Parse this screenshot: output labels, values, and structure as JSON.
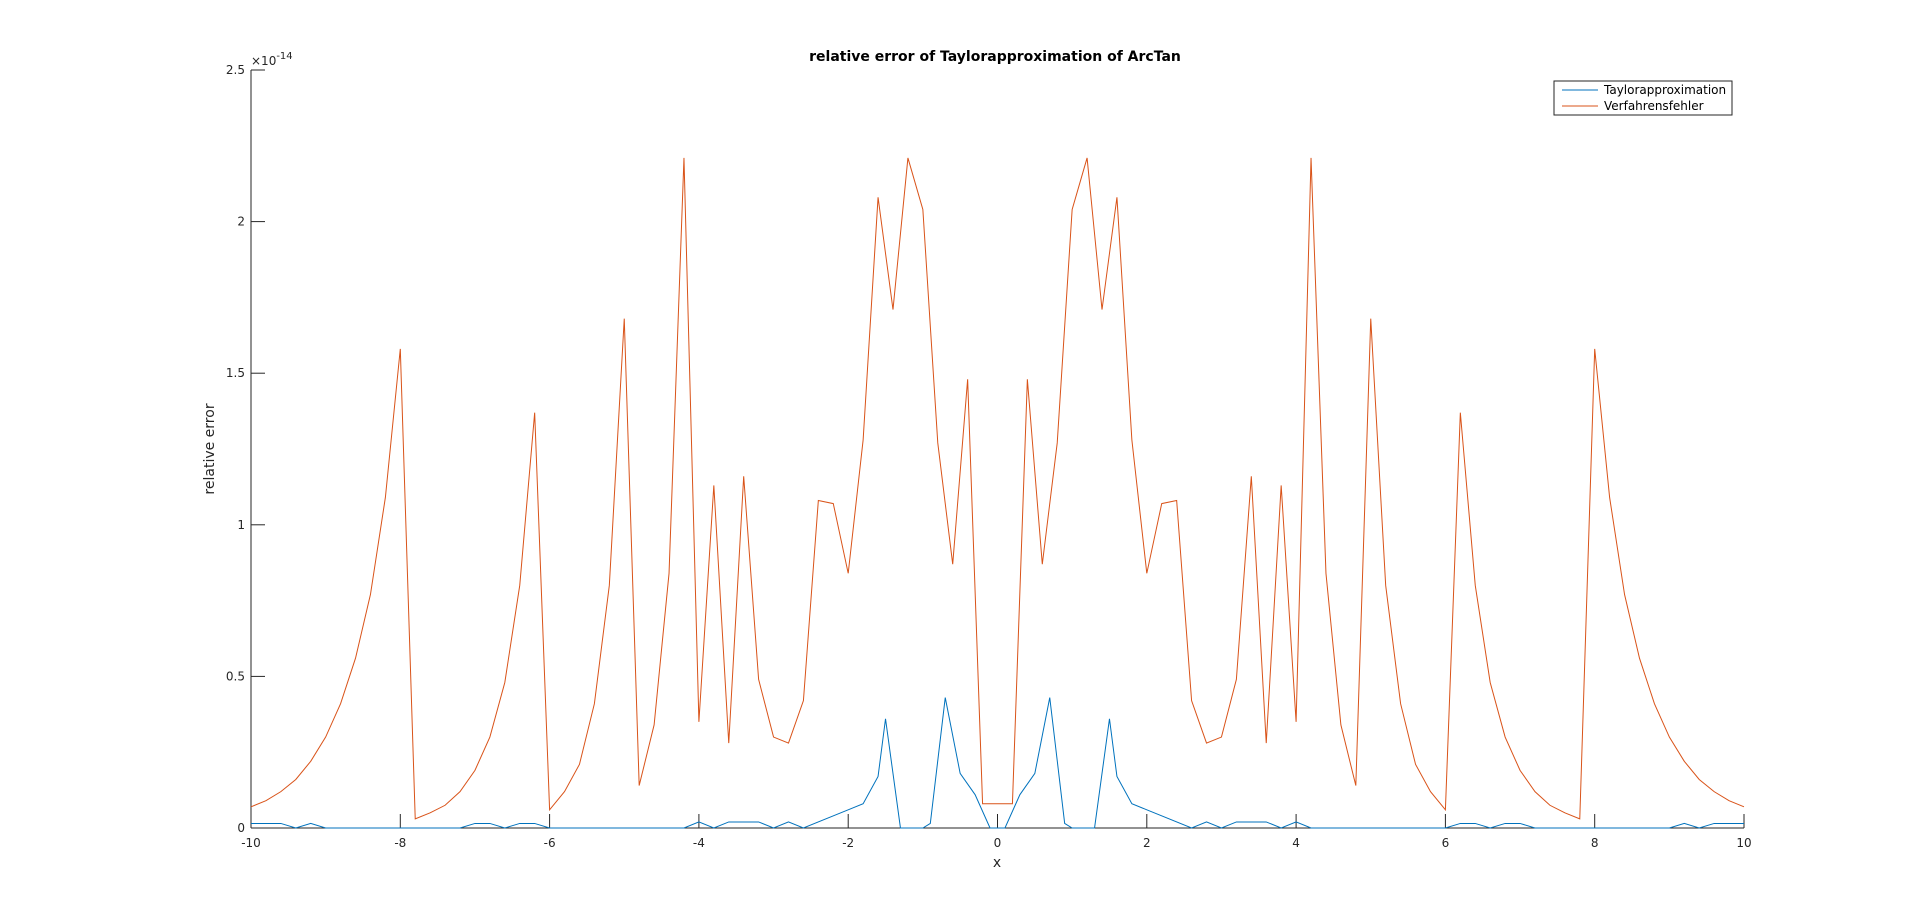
{
  "chart_data": {
    "type": "line",
    "title": "relative error of Taylorapproximation of ArcTan",
    "xlabel": "x",
    "ylabel": "relative error",
    "xlim": [
      -10,
      10
    ],
    "ylim": [
      0,
      2.5
    ],
    "y_exponent_label": "×10",
    "y_exponent_power": "-14",
    "xticks": [
      -10,
      -8,
      -6,
      -4,
      -2,
      0,
      2,
      4,
      6,
      8,
      10
    ],
    "xtick_labels": [
      "-10",
      "-8",
      "-6",
      "-4",
      "-2",
      "0",
      "2",
      "4",
      "6",
      "8",
      "10"
    ],
    "yticks": [
      0,
      0.5,
      1,
      1.5,
      2,
      2.5
    ],
    "ytick_labels": [
      "0",
      "0.5",
      "1",
      "1.5",
      "2",
      "2.5"
    ],
    "grid": false,
    "legend_position": "top-right",
    "series": [
      {
        "name": "Taylorapproximation",
        "color": "#0072BD",
        "points": [
          [
            -10,
            0.015
          ],
          [
            -9.6,
            0.015
          ],
          [
            -9.4,
            0
          ],
          [
            -9.2,
            0.015
          ],
          [
            -9.0,
            0
          ],
          [
            -7.2,
            0
          ],
          [
            -7.0,
            0.015
          ],
          [
            -6.8,
            0.015
          ],
          [
            -6.6,
            0
          ],
          [
            -6.4,
            0.015
          ],
          [
            -6.2,
            0.015
          ],
          [
            -6.0,
            0
          ],
          [
            -4.2,
            0
          ],
          [
            -4.0,
            0.02
          ],
          [
            -3.8,
            0
          ],
          [
            -3.6,
            0.02
          ],
          [
            -3.2,
            0.02
          ],
          [
            -3.0,
            0
          ],
          [
            -2.8,
            0.02
          ],
          [
            -2.6,
            0
          ],
          [
            -2.0,
            0.06
          ],
          [
            -1.8,
            0.08
          ],
          [
            -1.6,
            0.17
          ],
          [
            -1.5,
            0.36
          ],
          [
            -1.3,
            0
          ],
          [
            -1.0,
            0
          ],
          [
            -0.9,
            0.015
          ],
          [
            -0.7,
            0.43
          ],
          [
            -0.5,
            0.18
          ],
          [
            -0.3,
            0.11
          ],
          [
            -0.1,
            0
          ],
          [
            0.1,
            0
          ],
          [
            0.3,
            0.11
          ],
          [
            0.5,
            0.18
          ],
          [
            0.7,
            0.43
          ],
          [
            0.9,
            0.015
          ],
          [
            1.0,
            0
          ],
          [
            1.3,
            0
          ],
          [
            1.5,
            0.36
          ],
          [
            1.6,
            0.17
          ],
          [
            1.8,
            0.08
          ],
          [
            2.0,
            0.06
          ],
          [
            2.6,
            0
          ],
          [
            2.8,
            0.02
          ],
          [
            3.0,
            0
          ],
          [
            3.2,
            0.02
          ],
          [
            3.6,
            0.02
          ],
          [
            3.8,
            0
          ],
          [
            4.0,
            0.02
          ],
          [
            4.2,
            0
          ],
          [
            6.0,
            0
          ],
          [
            6.2,
            0.015
          ],
          [
            6.4,
            0.015
          ],
          [
            6.6,
            0
          ],
          [
            6.8,
            0.015
          ],
          [
            7.0,
            0.015
          ],
          [
            7.2,
            0
          ],
          [
            9.0,
            0
          ],
          [
            9.2,
            0.015
          ],
          [
            9.4,
            0
          ],
          [
            9.6,
            0.015
          ],
          [
            10,
            0.015
          ]
        ]
      },
      {
        "name": "Verfahrensfehler",
        "color": "#D95319",
        "points": [
          [
            -10,
            0.07
          ],
          [
            -9.8,
            0.09
          ],
          [
            -9.6,
            0.12
          ],
          [
            -9.4,
            0.16
          ],
          [
            -9.2,
            0.22
          ],
          [
            -9.0,
            0.3
          ],
          [
            -8.8,
            0.41
          ],
          [
            -8.6,
            0.56
          ],
          [
            -8.4,
            0.77
          ],
          [
            -8.2,
            1.09
          ],
          [
            -8.0,
            1.58
          ],
          [
            -7.8,
            0.03
          ],
          [
            -7.6,
            0.05
          ],
          [
            -7.4,
            0.075
          ],
          [
            -7.2,
            0.12
          ],
          [
            -7.0,
            0.19
          ],
          [
            -6.8,
            0.3
          ],
          [
            -6.6,
            0.48
          ],
          [
            -6.4,
            0.8
          ],
          [
            -6.2,
            1.37
          ],
          [
            -6.0,
            0.06
          ],
          [
            -5.8,
            0.12
          ],
          [
            -5.6,
            0.21
          ],
          [
            -5.4,
            0.41
          ],
          [
            -5.2,
            0.8
          ],
          [
            -5.0,
            1.68
          ],
          [
            -4.8,
            0.14
          ],
          [
            -4.6,
            0.34
          ],
          [
            -4.4,
            0.84
          ],
          [
            -4.2,
            2.21
          ],
          [
            -4.0,
            0.35
          ],
          [
            -3.8,
            1.13
          ],
          [
            -3.6,
            0.28
          ],
          [
            -3.4,
            1.16
          ],
          [
            -3.2,
            0.49
          ],
          [
            -3.0,
            0.3
          ],
          [
            -2.8,
            0.28
          ],
          [
            -2.6,
            0.42
          ],
          [
            -2.4,
            1.08
          ],
          [
            -2.2,
            1.07
          ],
          [
            -2.0,
            0.84
          ],
          [
            -1.8,
            1.28
          ],
          [
            -1.6,
            2.08
          ],
          [
            -1.4,
            1.71
          ],
          [
            -1.2,
            2.21
          ],
          [
            -1.0,
            2.04
          ],
          [
            -0.8,
            1.27
          ],
          [
            -0.6,
            0.87
          ],
          [
            -0.4,
            1.48
          ],
          [
            -0.2,
            0.08
          ],
          [
            0,
            0.08
          ],
          [
            0.2,
            0.08
          ],
          [
            0.4,
            1.48
          ],
          [
            0.6,
            0.87
          ],
          [
            0.8,
            1.27
          ],
          [
            1.0,
            2.04
          ],
          [
            1.2,
            2.21
          ],
          [
            1.4,
            1.71
          ],
          [
            1.6,
            2.08
          ],
          [
            1.8,
            1.28
          ],
          [
            2.0,
            0.84
          ],
          [
            2.2,
            1.07
          ],
          [
            2.4,
            1.08
          ],
          [
            2.6,
            0.42
          ],
          [
            2.8,
            0.28
          ],
          [
            3.0,
            0.3
          ],
          [
            3.2,
            0.49
          ],
          [
            3.4,
            1.16
          ],
          [
            3.6,
            0.28
          ],
          [
            3.8,
            1.13
          ],
          [
            4.0,
            0.35
          ],
          [
            4.2,
            2.21
          ],
          [
            4.4,
            0.84
          ],
          [
            4.6,
            0.34
          ],
          [
            4.8,
            0.14
          ],
          [
            5.0,
            1.68
          ],
          [
            5.2,
            0.8
          ],
          [
            5.4,
            0.41
          ],
          [
            5.6,
            0.21
          ],
          [
            5.8,
            0.12
          ],
          [
            6.0,
            0.06
          ],
          [
            6.2,
            1.37
          ],
          [
            6.4,
            0.8
          ],
          [
            6.6,
            0.48
          ],
          [
            6.8,
            0.3
          ],
          [
            7.0,
            0.19
          ],
          [
            7.2,
            0.12
          ],
          [
            7.4,
            0.075
          ],
          [
            7.6,
            0.05
          ],
          [
            7.8,
            0.03
          ],
          [
            8.0,
            1.58
          ],
          [
            8.2,
            1.09
          ],
          [
            8.4,
            0.77
          ],
          [
            8.6,
            0.56
          ],
          [
            8.8,
            0.41
          ],
          [
            9.0,
            0.3
          ],
          [
            9.2,
            0.22
          ],
          [
            9.4,
            0.16
          ],
          [
            9.6,
            0.12
          ],
          [
            9.8,
            0.09
          ],
          [
            10,
            0.07
          ]
        ]
      }
    ]
  }
}
